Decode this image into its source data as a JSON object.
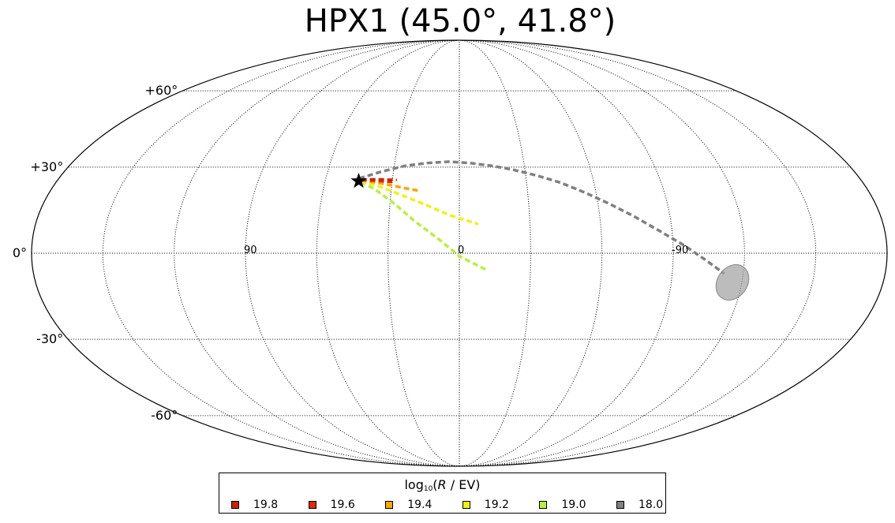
{
  "chart_data": {
    "type": "scatter",
    "projection": "mollweide",
    "title": "HPX1 (45.0°, 41.8°)",
    "grid": true,
    "longitude_tick_labels": [
      {
        "label": "90",
        "lon": 90
      },
      {
        "label": "0",
        "lon": 0
      },
      {
        "label": "-90",
        "lon": -90
      }
    ],
    "latitude_tick_labels": [
      {
        "label": "+60°",
        "lat": 60
      },
      {
        "label": "+30°",
        "lat": 30
      },
      {
        "label": "0°",
        "lat": 0
      },
      {
        "label": "-30°",
        "lat": -30
      },
      {
        "label": "-60°",
        "lat": -60
      }
    ],
    "source_marker": {
      "name": "star",
      "lon": 45,
      "lat": 25
    },
    "error_ellipse": {
      "lon": -116,
      "lat": -10,
      "color": "#a0a0a0"
    },
    "series": [
      {
        "name": "19.8",
        "color": "#cc2200",
        "points": [
          [
            44,
            25.5
          ],
          [
            40,
            25.6
          ],
          [
            36,
            25.6
          ],
          [
            32,
            25.5
          ],
          [
            28,
            25.4
          ]
        ]
      },
      {
        "name": "19.6",
        "color": "#e02a00",
        "points": [
          [
            44,
            25.4
          ],
          [
            39,
            25.2
          ],
          [
            35,
            25
          ],
          [
            30,
            24.7
          ]
        ]
      },
      {
        "name": "19.4",
        "color": "#f5a800",
        "points": [
          [
            44,
            25.2
          ],
          [
            37,
            24.5
          ],
          [
            30,
            23.5
          ],
          [
            24,
            22.5
          ],
          [
            17,
            21.5
          ]
        ]
      },
      {
        "name": "19.2",
        "color": "#f0f020",
        "points": [
          [
            44,
            25
          ],
          [
            35,
            23
          ],
          [
            25,
            20
          ],
          [
            14,
            16.5
          ],
          [
            4,
            13
          ],
          [
            -8,
            10
          ]
        ]
      },
      {
        "name": "19.0",
        "color": "#b8f040",
        "points": [
          [
            44,
            24.8
          ],
          [
            37,
            22
          ],
          [
            28,
            17
          ],
          [
            19,
            11
          ],
          [
            9,
            5
          ],
          [
            0,
            -1
          ],
          [
            -12,
            -6
          ]
        ]
      },
      {
        "name": "18.0",
        "color": "#808080",
        "points": [
          [
            45,
            26
          ],
          [
            35,
            28.5
          ],
          [
            25,
            30.5
          ],
          [
            15,
            31.5
          ],
          [
            5,
            32
          ],
          [
            -5,
            31.5
          ],
          [
            -15,
            30.5
          ],
          [
            -25,
            29
          ],
          [
            -35,
            27
          ],
          [
            -45,
            24.5
          ],
          [
            -55,
            21
          ],
          [
            -65,
            17
          ],
          [
            -75,
            12.5
          ],
          [
            -85,
            7.5
          ],
          [
            -95,
            2.5
          ],
          [
            -104,
            -2.5
          ],
          [
            -112,
            -7
          ]
        ]
      }
    ],
    "legend": {
      "title": "log₁₀(R / EV)",
      "location": "lower center",
      "columns": 6
    }
  }
}
